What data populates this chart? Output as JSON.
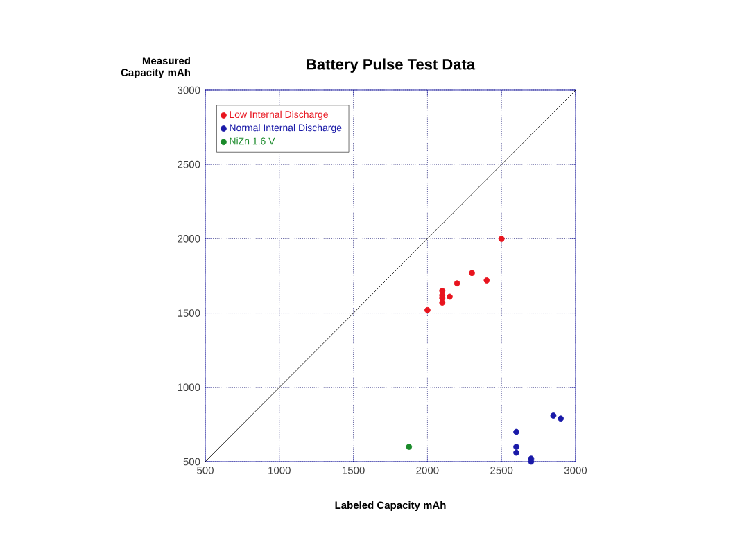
{
  "chart_data": {
    "type": "scatter",
    "title": "Battery Pulse Test Data",
    "xlabel": "Labeled Capacity mAh",
    "ylabel": "Measured Capacity mAh",
    "series": [
      {
        "name": "Low Internal Discharge",
        "color": "#e8141e",
        "x": [
          2000,
          2500,
          2100,
          2100,
          2100,
          2100,
          2150,
          2200,
          2300,
          2400
        ],
        "values": [
          1520,
          2000,
          1650,
          1620,
          1600,
          1570,
          1610,
          1700,
          1770,
          1720
        ]
      },
      {
        "name": "Normal Internal Discharge",
        "color": "#1a1aa8",
        "x": [
          2600,
          2600,
          2600,
          2700,
          2700,
          2850,
          2900
        ],
        "values": [
          700,
          600,
          560,
          520,
          500,
          810,
          790
        ]
      },
      {
        "name": "NiZn 1.6 V",
        "color": "#1a8a2a",
        "x": [
          1875
        ],
        "values": [
          600
        ]
      },
      {
        "type": "line",
        "color": "#000000",
        "marker": "none",
        "x": [
          500,
          3000
        ],
        "values": [
          500,
          3000
        ]
      }
    ],
    "xlim": [
      500,
      3000
    ],
    "ylim": [
      500,
      3000
    ],
    "xticks": [
      500,
      1000,
      1500,
      2000,
      2500,
      3000
    ],
    "yticks": [
      500,
      1000,
      1500,
      2000,
      2500,
      3000
    ],
    "grid": true,
    "legend": "top left",
    "marker": "circle"
  }
}
